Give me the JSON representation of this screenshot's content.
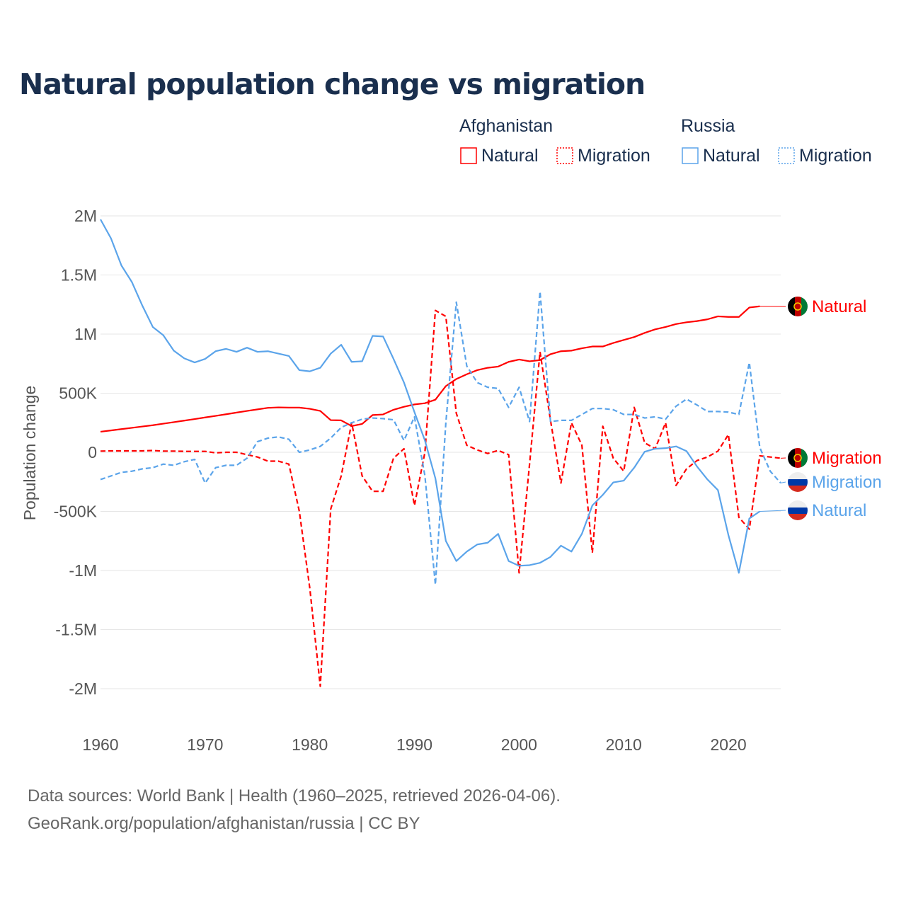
{
  "chart_data": {
    "type": "line",
    "title": "Natural population change vs migration",
    "ylabel": "Population change",
    "xlabel": "",
    "xlim": [
      1960,
      2025
    ],
    "ylim": [
      -2000000,
      2000000
    ],
    "x_ticks": [
      "1960",
      "1970",
      "1980",
      "1990",
      "2000",
      "2010",
      "2020"
    ],
    "y_ticks": [
      {
        "value": 2000000,
        "label": "2M"
      },
      {
        "value": 1500000,
        "label": "1.5M"
      },
      {
        "value": 1000000,
        "label": "1M"
      },
      {
        "value": 500000,
        "label": "500K"
      },
      {
        "value": 0,
        "label": "0"
      },
      {
        "value": -500000,
        "label": "-500K"
      },
      {
        "value": -1000000,
        "label": "-1M"
      },
      {
        "value": -1500000,
        "label": "-1.5M"
      },
      {
        "value": -2000000,
        "label": "-2M"
      }
    ],
    "grid": true,
    "legend": {
      "placement": "top-right",
      "groups": [
        {
          "name": "Afghanistan",
          "entries": [
            "Natural",
            "Migration"
          ]
        },
        {
          "name": "Russia",
          "entries": [
            "Natural",
            "Migration"
          ]
        }
      ]
    },
    "series": [
      {
        "name": "Natural",
        "country": "Afghanistan",
        "color": "#ff0000",
        "dashed": false,
        "start_year": 1960,
        "values": [
          174,
          185,
          196,
          207,
          218,
          229,
          242,
          255,
          268,
          281,
          295,
          308,
          322,
          336,
          350,
          363,
          376,
          380,
          378,
          378,
          368,
          350,
          272,
          270,
          222,
          240,
          315,
          320,
          360,
          385,
          405,
          415,
          445,
          560,
          620,
          660,
          695,
          715,
          725,
          765,
          785,
          770,
          780,
          830,
          855,
          860,
          880,
          895,
          895,
          925,
          950,
          975,
          1010,
          1040,
          1060,
          1085,
          1100,
          1110,
          1125,
          1150,
          1145,
          1145,
          1225,
          1235
        ]
      },
      {
        "name": "Migration",
        "country": "Afghanistan",
        "color": "#ff0000",
        "dashed": true,
        "start_year": 1960,
        "values": [
          10,
          12,
          12,
          12,
          12,
          15,
          10,
          10,
          8,
          8,
          8,
          -5,
          0,
          0,
          -20,
          -40,
          -75,
          -75,
          -100,
          -500,
          -1150,
          -1980,
          -480,
          -200,
          250,
          -200,
          -330,
          -330,
          -50,
          30,
          -450,
          0,
          1200,
          1150,
          330,
          60,
          20,
          -10,
          15,
          -20,
          -1020,
          -100,
          850,
          270,
          -260,
          250,
          60,
          -850,
          220,
          -50,
          -160,
          380,
          80,
          30,
          250,
          -280,
          -140,
          -70,
          -40,
          10,
          150,
          -550,
          -650,
          -30,
          -40,
          -50
        ]
      },
      {
        "name": "Natural",
        "country": "Russia",
        "color": "#5ba4ea",
        "dashed": false,
        "start_year": 1960,
        "values": [
          1970,
          1810,
          1580,
          1440,
          1240,
          1060,
          990,
          860,
          795,
          760,
          790,
          855,
          875,
          850,
          885,
          850,
          855,
          835,
          815,
          695,
          685,
          715,
          835,
          910,
          765,
          770,
          985,
          980,
          790,
          590,
          340,
          100,
          -220,
          -750,
          -920,
          -840,
          -780,
          -765,
          -690,
          -920,
          -960,
          -955,
          -935,
          -885,
          -790,
          -840,
          -690,
          -450,
          -360,
          -255,
          -240,
          -130,
          5,
          30,
          35,
          50,
          10,
          -120,
          -230,
          -320,
          -700,
          -1020,
          -560,
          -500
        ]
      },
      {
        "name": "Migration",
        "country": "Russia",
        "color": "#5ba4ea",
        "dashed": true,
        "start_year": 1960,
        "values": [
          -230,
          -200,
          -170,
          -160,
          -140,
          -130,
          -100,
          -110,
          -80,
          -60,
          -260,
          -130,
          -110,
          -110,
          -50,
          90,
          120,
          130,
          110,
          0,
          20,
          50,
          120,
          210,
          250,
          280,
          290,
          285,
          275,
          100,
          300,
          -200,
          -1120,
          250,
          1270,
          730,
          590,
          550,
          540,
          380,
          550,
          260,
          1360,
          260,
          270,
          270,
          320,
          370,
          370,
          360,
          320,
          320,
          290,
          300,
          280,
          390,
          450,
          400,
          345,
          345,
          340,
          320,
          760,
          40,
          -160,
          -260
        ]
      }
    ],
    "value_unit": "thousands",
    "end_labels": [
      {
        "text": "Natural",
        "series": 0,
        "flag": "afghanistan"
      },
      {
        "text": "Migration",
        "series": 1,
        "flag": "afghanistan"
      },
      {
        "text": "Migration",
        "series": 3,
        "flag": "russia"
      },
      {
        "text": "Natural",
        "series": 2,
        "flag": "russia"
      }
    ]
  },
  "footer": {
    "line1": "Data sources: World Bank | Health (1960–2025, retrieved 2026-04-06).",
    "line2": "GeoRank.org/population/afghanistan/russia | CC BY"
  }
}
